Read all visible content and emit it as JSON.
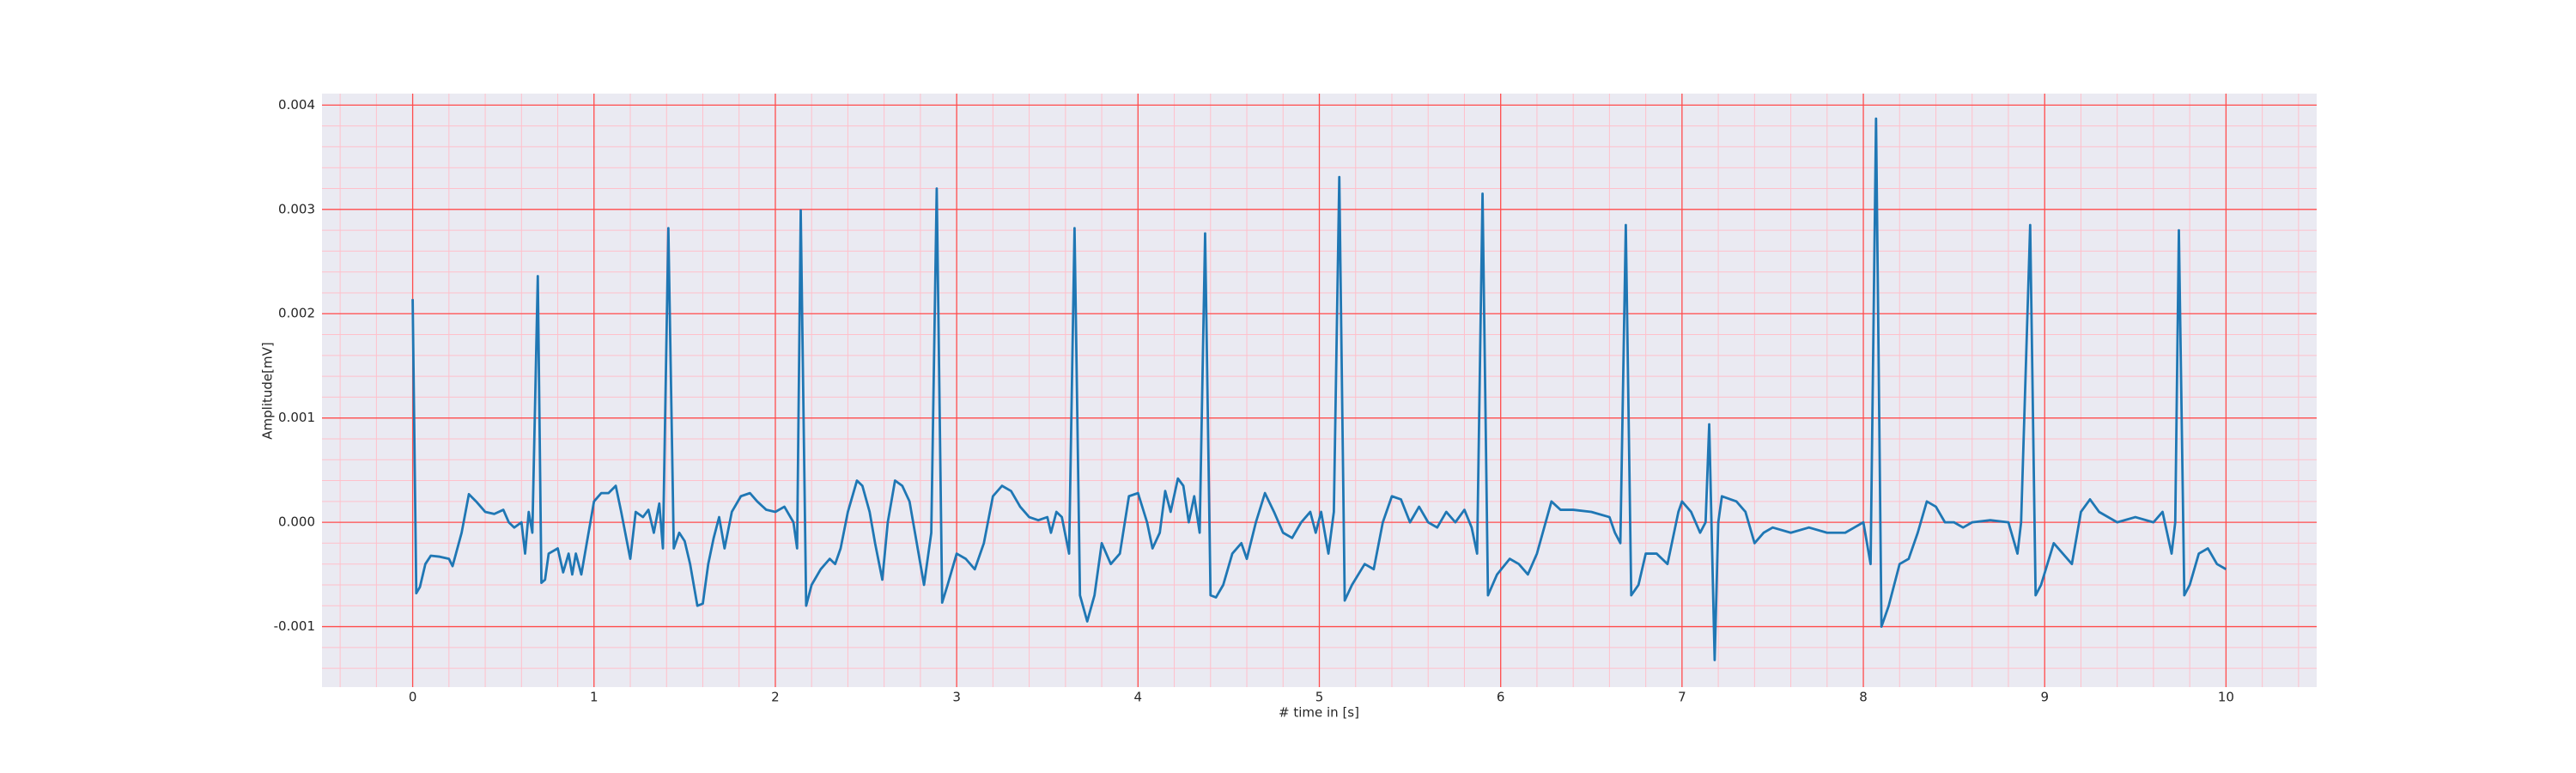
{
  "chart_data": {
    "type": "line",
    "xlabel": "# time in [s]",
    "ylabel": "Amplitude[mV]",
    "color": "#1f77b4",
    "background": "#eaeaf2",
    "grid": true,
    "grid_color": "#ff4d4d",
    "minor_grid": true,
    "minor_grid_color": "#ffc0cb",
    "xlim": [
      -0.5,
      10.5
    ],
    "xticks": [
      0,
      1,
      2,
      3,
      4,
      5,
      6,
      7,
      8,
      9,
      10
    ],
    "ylim": [
      -0.00158,
      0.00411
    ],
    "yticks": [
      -0.001,
      {
        "value": 0,
        "label": "0.000"
      },
      0.001,
      0.002,
      0.003,
      0.004
    ],
    "x": [
      0,
      0.02,
      0.04,
      0.07,
      0.1,
      0.15,
      0.2,
      0.22,
      0.27,
      0.31,
      0.35,
      0.4,
      0.45,
      0.5,
      0.53,
      0.56,
      0.6,
      0.62,
      0.64,
      0.66,
      0.69,
      0.71,
      0.73,
      0.75,
      0.8,
      0.83,
      0.86,
      0.88,
      0.9,
      0.93,
      0.96,
      1.0,
      1.04,
      1.08,
      1.12,
      1.15,
      1.2,
      1.23,
      1.27,
      1.3,
      1.33,
      1.36,
      1.38,
      1.41,
      1.44,
      1.47,
      1.5,
      1.53,
      1.57,
      1.6,
      1.63,
      1.66,
      1.69,
      1.72,
      1.76,
      1.81,
      1.86,
      1.9,
      1.95,
      2.0,
      2.05,
      2.1,
      2.12,
      2.14,
      2.17,
      2.2,
      2.25,
      2.3,
      2.33,
      2.36,
      2.4,
      2.45,
      2.48,
      2.52,
      2.55,
      2.59,
      2.62,
      2.66,
      2.7,
      2.74,
      2.78,
      2.82,
      2.86,
      2.89,
      2.92,
      2.95,
      3.0,
      3.05,
      3.1,
      3.15,
      3.2,
      3.25,
      3.3,
      3.35,
      3.4,
      3.45,
      3.5,
      3.52,
      3.55,
      3.58,
      3.62,
      3.65,
      3.68,
      3.72,
      3.76,
      3.8,
      3.85,
      3.9,
      3.95,
      4.0,
      4.05,
      4.08,
      4.12,
      4.15,
      4.18,
      4.22,
      4.25,
      4.28,
      4.31,
      4.34,
      4.37,
      4.4,
      4.43,
      4.47,
      4.52,
      4.57,
      4.6,
      4.65,
      4.7,
      4.75,
      4.8,
      4.85,
      4.9,
      4.95,
      4.98,
      5.01,
      5.05,
      5.08,
      5.11,
      5.14,
      5.18,
      5.25,
      5.3,
      5.35,
      5.4,
      5.45,
      5.5,
      5.55,
      5.6,
      5.65,
      5.7,
      5.75,
      5.8,
      5.84,
      5.87,
      5.9,
      5.93,
      5.98,
      6.05,
      6.1,
      6.15,
      6.2,
      6.28,
      6.33,
      6.4,
      6.5,
      6.6,
      6.63,
      6.66,
      6.69,
      6.72,
      6.76,
      6.8,
      6.86,
      6.92,
      6.98,
      7.0,
      7.05,
      7.1,
      7.13,
      7.15,
      7.18,
      7.2,
      7.22,
      7.3,
      7.35,
      7.4,
      7.45,
      7.5,
      7.6,
      7.7,
      7.8,
      7.9,
      7.95,
      8.0,
      8.04,
      8.07,
      8.1,
      8.14,
      8.2,
      8.25,
      8.3,
      8.35,
      8.4,
      8.45,
      8.5,
      8.55,
      8.6,
      8.7,
      8.8,
      8.85,
      8.87,
      8.92,
      8.95,
      8.98,
      9.05,
      9.1,
      9.15,
      9.2,
      9.25,
      9.3,
      9.4,
      9.5,
      9.6,
      9.65,
      9.7,
      9.72,
      9.74,
      9.77,
      9.8,
      9.85,
      9.9,
      9.95,
      10.0
    ],
    "values": [
      0.00214,
      -0.00068,
      -0.00062,
      -0.0004,
      -0.00032,
      -0.00033,
      -0.00035,
      -0.00042,
      -0.0001,
      0.00027,
      0.0002,
      0.0001,
      8e-05,
      0.00012,
      0,
      -5e-05,
      0,
      -0.0003,
      0.0001,
      -0.0001,
      0.00236,
      -0.00058,
      -0.00055,
      -0.0003,
      -0.00025,
      -0.00048,
      -0.0003,
      -0.0005,
      -0.0003,
      -0.0005,
      -0.0002,
      0.0002,
      0.00028,
      0.00028,
      0.00035,
      0.0001,
      -0.00035,
      0.0001,
      5e-05,
      0.00012,
      -0.0001,
      0.00018,
      -0.00025,
      0.00282,
      -0.00025,
      -0.0001,
      -0.00018,
      -0.0004,
      -0.0008,
      -0.00078,
      -0.0004,
      -0.00015,
      5e-05,
      -0.00025,
      0.0001,
      0.00025,
      0.00028,
      0.0002,
      0.00012,
      0.0001,
      0.00015,
      0,
      -0.00025,
      0.00299,
      -0.0008,
      -0.0006,
      -0.00045,
      -0.00035,
      -0.0004,
      -0.00025,
      0.0001,
      0.0004,
      0.00035,
      0.0001,
      -0.0002,
      -0.00055,
      0,
      0.0004,
      0.00035,
      0.0002,
      -0.0002,
      -0.0006,
      -0.0001,
      0.0032,
      -0.00077,
      -0.0006,
      -0.0003,
      -0.00035,
      -0.00045,
      -0.0002,
      0.00025,
      0.00035,
      0.0003,
      0.00015,
      5e-05,
      2e-05,
      5e-05,
      -0.0001,
      0.0001,
      5e-05,
      -0.0003,
      0.00282,
      -0.0007,
      -0.00095,
      -0.0007,
      -0.0002,
      -0.0004,
      -0.0003,
      0.00025,
      0.00028,
      0,
      -0.00025,
      -0.0001,
      0.0003,
      0.0001,
      0.00042,
      0.00035,
      0,
      0.00025,
      -0.0001,
      0.00277,
      -0.0007,
      -0.00072,
      -0.0006,
      -0.0003,
      -0.0002,
      -0.00035,
      0,
      0.00028,
      0.0001,
      -0.0001,
      -0.00015,
      0,
      0.0001,
      -0.0001,
      0.0001,
      -0.0003,
      0.0001,
      0.00331,
      -0.00075,
      -0.0006,
      -0.0004,
      -0.00045,
      0,
      0.00025,
      0.00022,
      0,
      0.00015,
      0,
      -5e-05,
      0.0001,
      0,
      0.00012,
      -5e-05,
      -0.0003,
      0.00315,
      -0.0007,
      -0.0005,
      -0.00035,
      -0.0004,
      -0.0005,
      -0.0003,
      0.0002,
      0.00012,
      0.00012,
      0.0001,
      5e-05,
      -0.0001,
      -0.0002,
      0.00285,
      -0.0007,
      -0.0006,
      -0.0003,
      -0.0003,
      -0.0004,
      0.0001,
      0.0002,
      0.0001,
      -0.0001,
      0,
      0.00094,
      -0.00132,
      0,
      0.00025,
      0.0002,
      0.0001,
      -0.0002,
      -0.0001,
      -5e-05,
      -0.0001,
      -5e-05,
      -0.0001,
      -0.0001,
      -5e-05,
      0,
      -0.0004,
      0.00387,
      -0.001,
      -0.0008,
      -0.0004,
      -0.00035,
      -0.0001,
      0.0002,
      0.00015,
      0,
      0,
      -5e-05,
      0,
      2e-05,
      0,
      -0.0003,
      0,
      0.00285,
      -0.0007,
      -0.0006,
      -0.0002,
      -0.0003,
      -0.0004,
      0.0001,
      0.00022,
      0.0001,
      0,
      5e-05,
      0,
      0.0001,
      -0.0003,
      0,
      0.0028,
      -0.0007,
      -0.0006,
      -0.0003,
      -0.00025,
      -0.0004,
      -0.00045
    ]
  }
}
